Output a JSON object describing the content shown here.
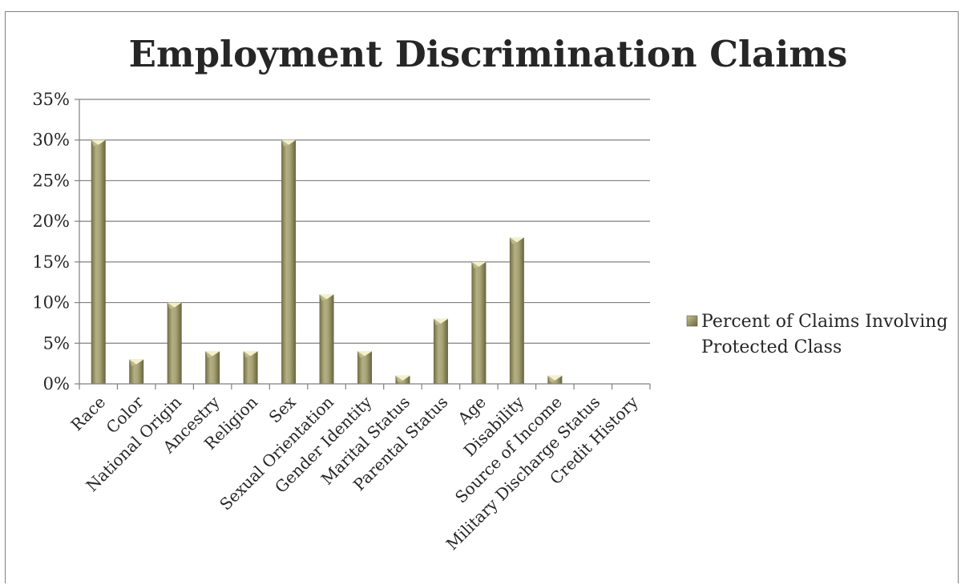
{
  "chart_data": {
    "type": "bar",
    "title": "Employment Discrimination Claims",
    "xlabel": "",
    "ylabel": "",
    "ylim": [
      0,
      35
    ],
    "ytick_step": 5,
    "ytick_suffix": "%",
    "grid": true,
    "legend_position": "right",
    "categories": [
      "Race",
      "Color",
      "National Origin",
      "Ancestry",
      "Religion",
      "Sex",
      "Sexual Orientation",
      "Gender Identity",
      "Marital Status",
      "Parental Status",
      "Age",
      "Disability",
      "Source of Income",
      "Military Discharge Status",
      "Credit History"
    ],
    "series": [
      {
        "name": "Percent of Claims Involving Protected Class",
        "legend_lines": [
          "Percent of Claims Involving",
          "Protected Class"
        ],
        "values": [
          30,
          3,
          10,
          4,
          4,
          30,
          11,
          4,
          1,
          8,
          15,
          18,
          1,
          0,
          0
        ],
        "color": "#9a9668"
      }
    ]
  },
  "colors": {
    "bar_fill": "#9a9668",
    "bar_top": "#f3f1cc",
    "gridline": "#808080",
    "text": "#262626"
  }
}
